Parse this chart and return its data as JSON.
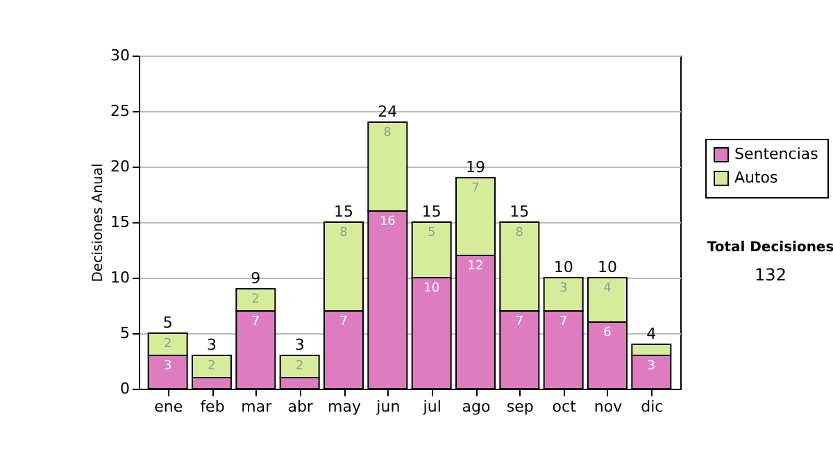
{
  "chart_data": {
    "type": "bar",
    "stacked": true,
    "ylabel": "Decisiones Anual",
    "categories": [
      "ene",
      "feb",
      "mar",
      "abr",
      "may",
      "jun",
      "jul",
      "ago",
      "sep",
      "oct",
      "nov",
      "dic"
    ],
    "series": [
      {
        "name": "Sentencias",
        "color": "#dd7dc0",
        "values": [
          3,
          1,
          7,
          1,
          7,
          16,
          10,
          12,
          7,
          7,
          6,
          3
        ],
        "value_labels": [
          "3",
          null,
          "7",
          null,
          "7",
          "16",
          "10",
          "12",
          "7",
          "7",
          "6",
          "3"
        ]
      },
      {
        "name": "Autos",
        "color": "#d7ec9a",
        "values": [
          2,
          2,
          2,
          2,
          8,
          8,
          5,
          7,
          8,
          3,
          4,
          1
        ],
        "value_labels": [
          "2",
          "2",
          "2",
          "2",
          "8",
          "8",
          "5",
          "7",
          "8",
          "3",
          "4",
          null
        ]
      }
    ],
    "totals": [
      "5",
      "3",
      "9",
      "3",
      "15",
      "24",
      "15",
      "19",
      "15",
      "10",
      "10",
      "4"
    ],
    "ylim": [
      0,
      30
    ],
    "yticks": [
      0,
      5,
      10,
      15,
      20,
      25,
      30
    ],
    "grid": "y",
    "legend": "right",
    "annotations": [
      "Total Decisiones",
      "132"
    ]
  }
}
